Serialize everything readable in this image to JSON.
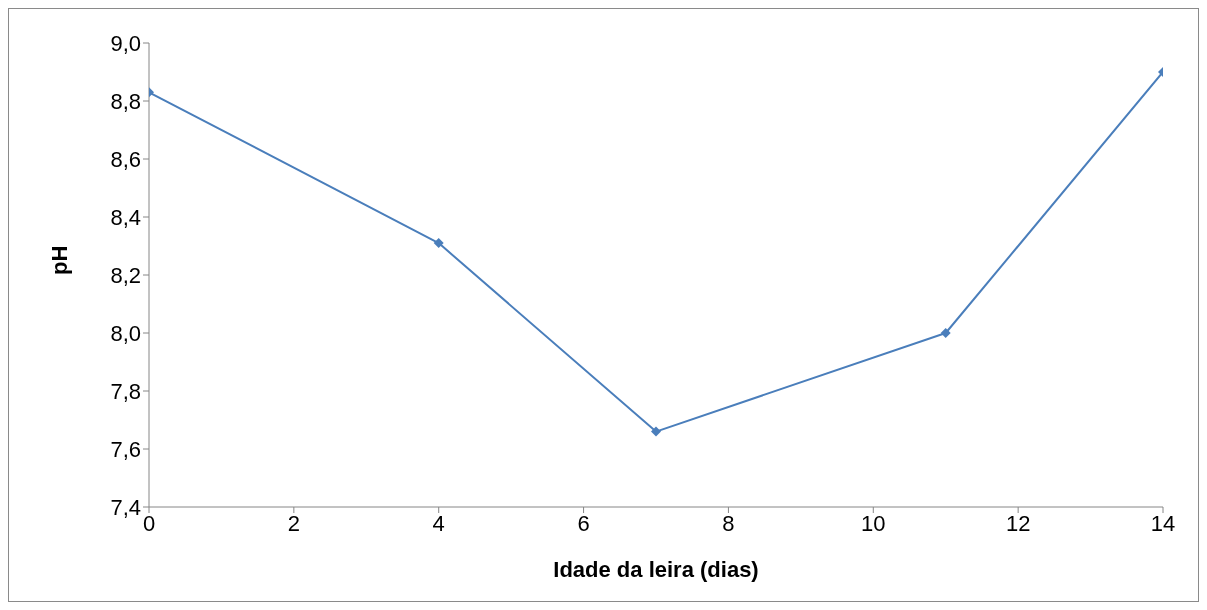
{
  "chart_data": {
    "type": "line",
    "xlabel": "Idade da leira (dias)",
    "ylabel": "pH",
    "x": [
      0,
      4,
      7,
      11,
      14
    ],
    "series": [
      {
        "color": "#4a7ebb",
        "values": [
          8.83,
          8.31,
          7.66,
          8.0,
          8.9
        ]
      }
    ],
    "xlim": [
      0,
      14
    ],
    "xticks": [
      0,
      2,
      4,
      6,
      8,
      10,
      12,
      14
    ],
    "ylim": [
      7.4,
      9.0
    ],
    "yticks": [
      {
        "value": 7.4,
        "label": "7,4"
      },
      {
        "value": 7.6,
        "label": "7,6"
      },
      {
        "value": 7.8,
        "label": "7,8"
      },
      {
        "value": 8.0,
        "label": "8,0"
      },
      {
        "value": 8.2,
        "label": "8,2"
      },
      {
        "value": 8.4,
        "label": "8,4"
      },
      {
        "value": 8.6,
        "label": "8,6"
      },
      {
        "value": 8.8,
        "label": "8,8"
      },
      {
        "value": 9.0,
        "label": "9,0"
      }
    ],
    "grid": false,
    "legend": false,
    "marker": "diamond",
    "line_style": "solid"
  }
}
